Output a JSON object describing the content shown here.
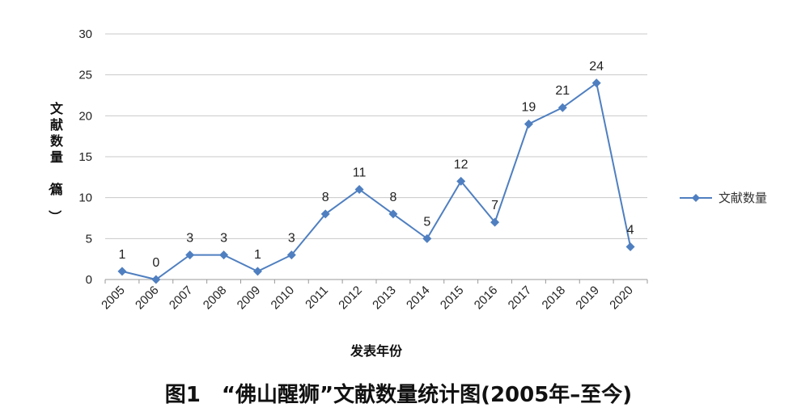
{
  "chart_data": {
    "type": "line",
    "x": [
      "2005",
      "2006",
      "2007",
      "2008",
      "2009",
      "2010",
      "2011",
      "2012",
      "2013",
      "2014",
      "2015",
      "2016",
      "2017",
      "2018",
      "2019",
      "2020"
    ],
    "series": [
      {
        "name": "文献数量",
        "values": [
          1,
          0,
          3,
          3,
          1,
          3,
          8,
          11,
          8,
          5,
          12,
          7,
          19,
          21,
          24,
          4
        ]
      }
    ],
    "xlabel": "发表年份",
    "ylabel": "文献数量（篇）",
    "ylim": [
      0,
      30
    ],
    "yticks": [
      0,
      5,
      10,
      15,
      20,
      25,
      30
    ],
    "grid": true,
    "legend": "right",
    "series_color": "#4f7fc0",
    "data_labels": true
  },
  "caption": "图1　“佛山醒狮”文献数量统计图(2005年–至今)"
}
